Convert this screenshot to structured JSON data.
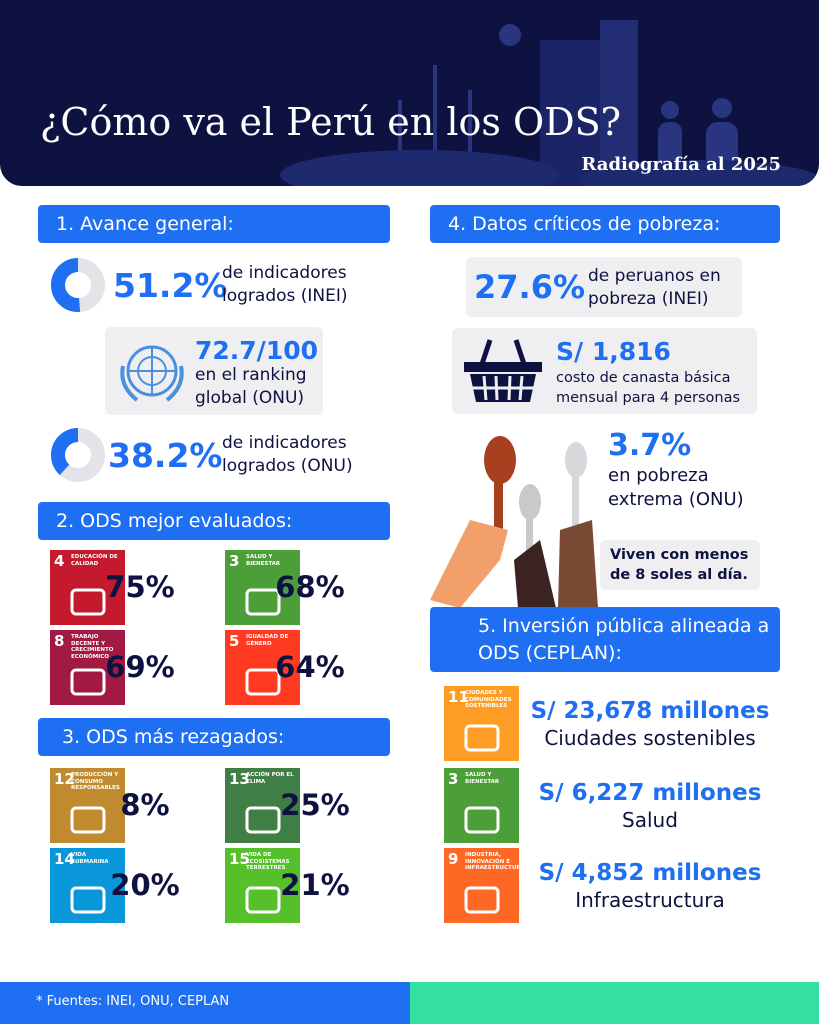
{
  "header": {
    "title": "¿Cómo va el Perú en los ODS?",
    "subtitle": "Radiografía al 2025"
  },
  "avance": {
    "heading": "1. Avance general:",
    "inei": {
      "value": {
        "value": 51.2,
        "label": "51.2%"
      },
      "text": "de indicadores logrados (INEI)"
    },
    "ranking": {
      "value": "72.7/100",
      "text": "en el ranking global (ONU)"
    },
    "onu": {
      "value": {
        "value": 38.2,
        "label": "38.2%"
      },
      "text": "de indicadores logrados (ONU)"
    }
  },
  "mejor": {
    "heading": "2. ODS mejor evaluados:",
    "tiles": [
      {
        "number": "4",
        "name": "EDUCACIÓN DE CALIDAD",
        "color": "#c5192d",
        "value": "75%"
      },
      {
        "number": "3",
        "name": "SALUD Y BIENESTAR",
        "color": "#4c9f38",
        "value": "68%"
      },
      {
        "number": "8",
        "name": "TRABAJO DECENTE Y CRECIMIENTO ECONÓMICO",
        "color": "#a21942",
        "value": "69%"
      },
      {
        "number": "5",
        "name": "IGUALDAD DE GÉNERO",
        "color": "#ff3a21",
        "value": "64%"
      }
    ]
  },
  "rezagados": {
    "heading": "3. ODS más rezagados:",
    "tiles": [
      {
        "number": "12",
        "name": "PRODUCCIÓN Y CONSUMO RESPONSABLES",
        "color": "#bf8b2e",
        "value": "8%"
      },
      {
        "number": "13",
        "name": "ACCIÓN POR EL CLIMA",
        "color": "#3f7e44",
        "value": "25%"
      },
      {
        "number": "14",
        "name": "VIDA SUBMARINA",
        "color": "#0a97d9",
        "value": "20%"
      },
      {
        "number": "15",
        "name": "VIDA DE ECOSISTEMAS TERRESTRES",
        "color": "#56c02b",
        "value": "21%"
      }
    ]
  },
  "pobreza": {
    "heading": "4. Datos críticos de pobreza:",
    "pobres": {
      "value": "27.6%",
      "text": "de peruanos en pobreza (INEI)"
    },
    "canasta": {
      "value": "S/ 1,816",
      "text": "costo de canasta básica mensual para 4 personas"
    },
    "extrema": {
      "value": "3.7%",
      "text": "en pobreza extrema (ONU)"
    },
    "note": "Viven con menos de 8 soles al día."
  },
  "inversion": {
    "heading": "5. Inversión pública alineada a ODS (CEPLAN):",
    "items": [
      {
        "number": "11",
        "name": "CIUDADES Y COMUNIDADES SOSTENIBLES",
        "color": "#fd9d24",
        "amount": "S/ 23,678 millones",
        "label": "Ciudades sostenibles"
      },
      {
        "number": "3",
        "name": "SALUD Y BIENESTAR",
        "color": "#4c9f38",
        "amount": "S/ 6,227 millones",
        "label": "Salud"
      },
      {
        "number": "9",
        "name": "INDUSTRIA, INNOVACIÓN E INFRAESTRUCTURA",
        "color": "#fd6925",
        "amount": "S/ 4,852 millones",
        "label": "Infraestructura"
      }
    ]
  },
  "footer": "* Fuentes: INEI, ONU, CEPLAN"
}
